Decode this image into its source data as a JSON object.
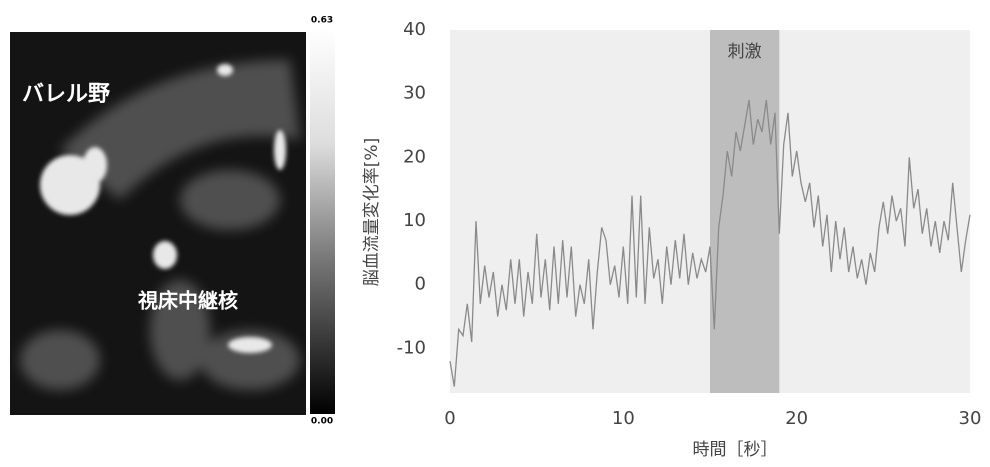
{
  "image": {
    "labels": [
      "バレル野",
      "視床中継核"
    ],
    "colorbar": {
      "max": "0.63",
      "min": "0.00"
    }
  },
  "chart_data": {
    "type": "line",
    "ylabel": "脳血流量変化率[%]",
    "xlabel": "時間［秒］",
    "color": "#8a8a8a",
    "highlight": {
      "label": "刺激",
      "x": [
        15,
        19
      ],
      "color": "#bdbdbd"
    },
    "xlim": [
      0,
      30
    ],
    "xticks": [
      0,
      10,
      20,
      30
    ],
    "ylim": [
      -17,
      40
    ],
    "yticks": [
      40,
      30,
      20,
      10,
      0,
      -10
    ],
    "grid": false,
    "x": [
      0,
      0.25,
      0.5,
      0.75,
      1,
      1.25,
      1.5,
      1.75,
      2,
      2.25,
      2.5,
      2.75,
      3,
      3.25,
      3.5,
      3.75,
      4,
      4.25,
      4.5,
      4.75,
      5,
      5.25,
      5.5,
      5.75,
      6,
      6.25,
      6.5,
      6.75,
      7,
      7.25,
      7.5,
      7.75,
      8,
      8.25,
      8.5,
      8.75,
      9,
      9.25,
      9.5,
      9.75,
      10,
      10.25,
      10.5,
      10.75,
      11,
      11.25,
      11.5,
      11.75,
      12,
      12.25,
      12.5,
      12.75,
      13,
      13.25,
      13.5,
      13.75,
      14,
      14.25,
      14.5,
      14.75,
      15,
      15.25,
      15.5,
      15.75,
      16,
      16.25,
      16.5,
      16.75,
      17,
      17.25,
      17.5,
      17.75,
      18,
      18.25,
      18.5,
      18.75,
      19,
      19.25,
      19.5,
      19.75,
      20,
      20.25,
      20.5,
      20.75,
      21,
      21.25,
      21.5,
      21.75,
      22,
      22.25,
      22.5,
      22.75,
      23,
      23.25,
      23.5,
      23.75,
      24,
      24.25,
      24.5,
      24.75,
      25,
      25.25,
      25.5,
      25.75,
      26,
      26.25,
      26.5,
      26.75,
      27,
      27.25,
      27.5,
      27.75,
      28,
      28.25,
      28.5,
      28.75,
      29,
      29.25,
      29.5,
      29.75,
      30
    ],
    "values": [
      -12,
      -16,
      -7,
      -8,
      -3,
      -9,
      10,
      -3,
      3,
      -2,
      2,
      -5,
      0,
      -4,
      4,
      -3,
      4,
      -5,
      2,
      -3,
      8,
      -2,
      4,
      -4,
      6,
      -3,
      7,
      -2,
      6,
      -5,
      0,
      -3,
      4,
      -7,
      2,
      9,
      7,
      0,
      3,
      -2,
      6,
      -3,
      14,
      -2,
      14,
      -3,
      9,
      1,
      4,
      -3,
      6,
      0,
      7,
      1,
      8,
      0,
      5,
      1,
      4,
      2,
      6,
      -7,
      9,
      14,
      21,
      17,
      24,
      21,
      25,
      29,
      22,
      26,
      24,
      29,
      22,
      27,
      8,
      22,
      27,
      17,
      21,
      16,
      13,
      16,
      9,
      14,
      6,
      11,
      2,
      10,
      4,
      9,
      2,
      6,
      1,
      4,
      0,
      5,
      2,
      9,
      13,
      8,
      14,
      10,
      12,
      6,
      20,
      12,
      15,
      8,
      12,
      6,
      10,
      5,
      10,
      7,
      16,
      9,
      2,
      7,
      11
    ]
  }
}
